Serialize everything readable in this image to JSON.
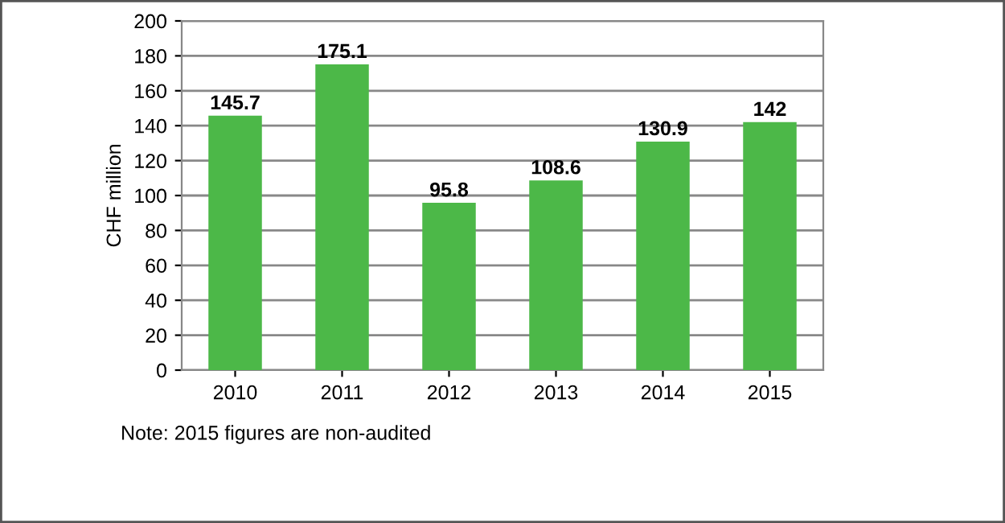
{
  "chart_data": {
    "type": "bar",
    "ylabel": "CHF million",
    "categories": [
      "2010",
      "2011",
      "2012",
      "2013",
      "2014",
      "2015"
    ],
    "values": [
      145.7,
      175.1,
      95.8,
      108.6,
      130.9,
      142
    ],
    "color": "#4cb848",
    "ylim": [
      0,
      200
    ],
    "yticks": [
      0,
      20,
      40,
      60,
      80,
      100,
      120,
      140,
      160,
      180,
      200
    ],
    "grid": "y",
    "data_labels": true,
    "legend": false,
    "annotations": [
      "Note: 2015 figures are non-audited"
    ]
  }
}
